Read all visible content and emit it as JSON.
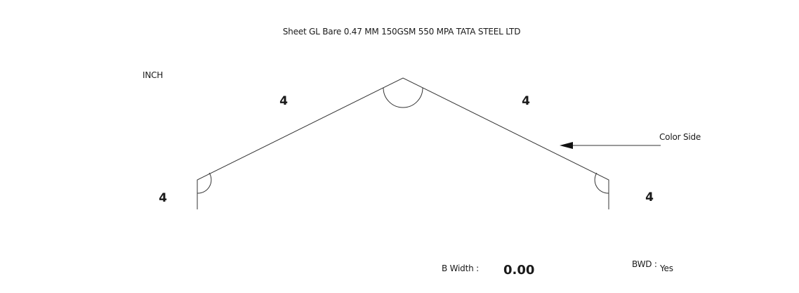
{
  "title": "Sheet GL Bare 0.47 MM 150GSM 550 MPA TATA STEEL LTD",
  "unit": "INCH",
  "dimensions": {
    "left_flange": "4",
    "left_slope": "4",
    "right_slope": "4",
    "right_flange": "4"
  },
  "color_side_label": "Color Side",
  "b_width": {
    "label": "B Width :",
    "value": "0.00"
  },
  "bwd": {
    "label": "BWD :",
    "value": "Yes"
  }
}
